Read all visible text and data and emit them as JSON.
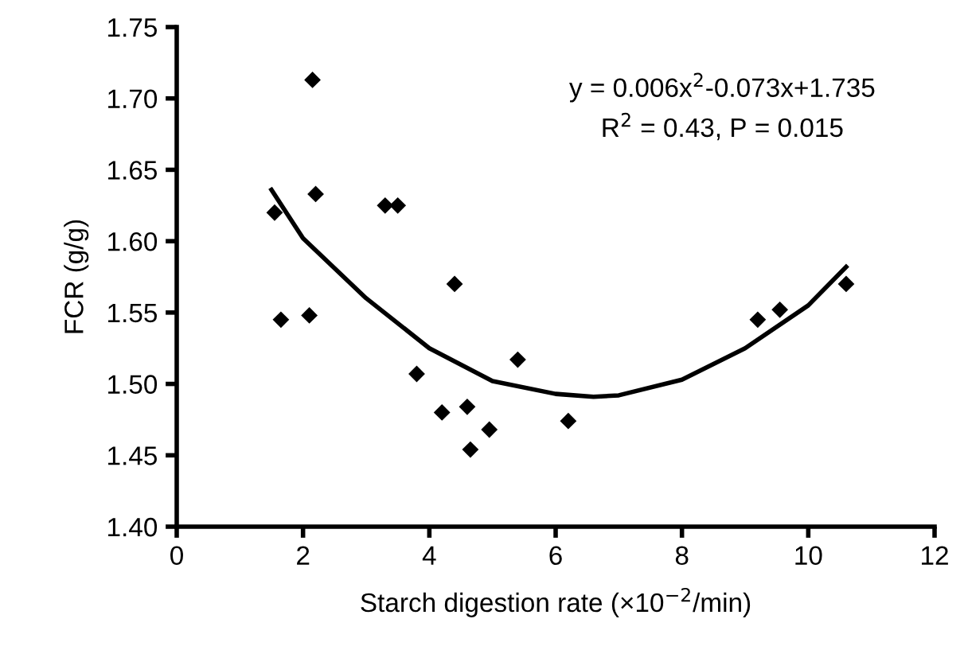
{
  "chart_data": {
    "type": "scatter",
    "xlabel": "Starch digestion rate (×10$^{−2}$/min)",
    "ylabel": "FCR (g/g)",
    "annotations": [
      "y = 0.006x$^{2}$-0.073x+1.735",
      "R$^{2}$ = 0.43, P = 0.015"
    ],
    "series": [
      {
        "color": "#000000",
        "marker": "diamond",
        "x": [
          1.55,
          1.65,
          2.1,
          2.15,
          2.2,
          3.3,
          3.5,
          3.8,
          4.2,
          4.4,
          4.6,
          4.65,
          4.95,
          5.4,
          6.2,
          9.2,
          9.55,
          10.6
        ],
        "values": [
          1.62,
          1.545,
          1.548,
          1.713,
          1.633,
          1.625,
          1.625,
          1.507,
          1.48,
          1.57,
          1.484,
          1.454,
          1.468,
          1.517,
          1.474,
          1.545,
          1.552,
          1.57
        ]
      },
      {
        "type": "line",
        "color": "#000000",
        "marker": "none",
        "x": [
          1.5,
          2,
          3,
          4,
          5,
          6,
          6.6,
          7,
          8,
          9,
          10,
          10.6
        ],
        "values": [
          1.636,
          1.602,
          1.56,
          1.525,
          1.502,
          1.493,
          1.491,
          1.492,
          1.503,
          1.525,
          1.555,
          1.582
        ]
      }
    ],
    "xlim": [
      0,
      12
    ],
    "xticks": [
      0,
      2,
      4,
      6,
      8,
      10,
      12
    ],
    "ylim": [
      1.4,
      1.75
    ],
    "yticks": [
      {
        "value": 1.4,
        "label": "1.40"
      },
      {
        "value": 1.45,
        "label": "1.45"
      },
      {
        "value": 1.5,
        "label": "1.50"
      },
      {
        "value": 1.55,
        "label": "1.55"
      },
      {
        "value": 1.6,
        "label": "1.60"
      },
      {
        "value": 1.65,
        "label": "1.65"
      },
      {
        "value": 1.7,
        "label": "1.70"
      },
      {
        "value": 1.75,
        "label": "1.75"
      }
    ],
    "grid": false,
    "legend": false
  }
}
